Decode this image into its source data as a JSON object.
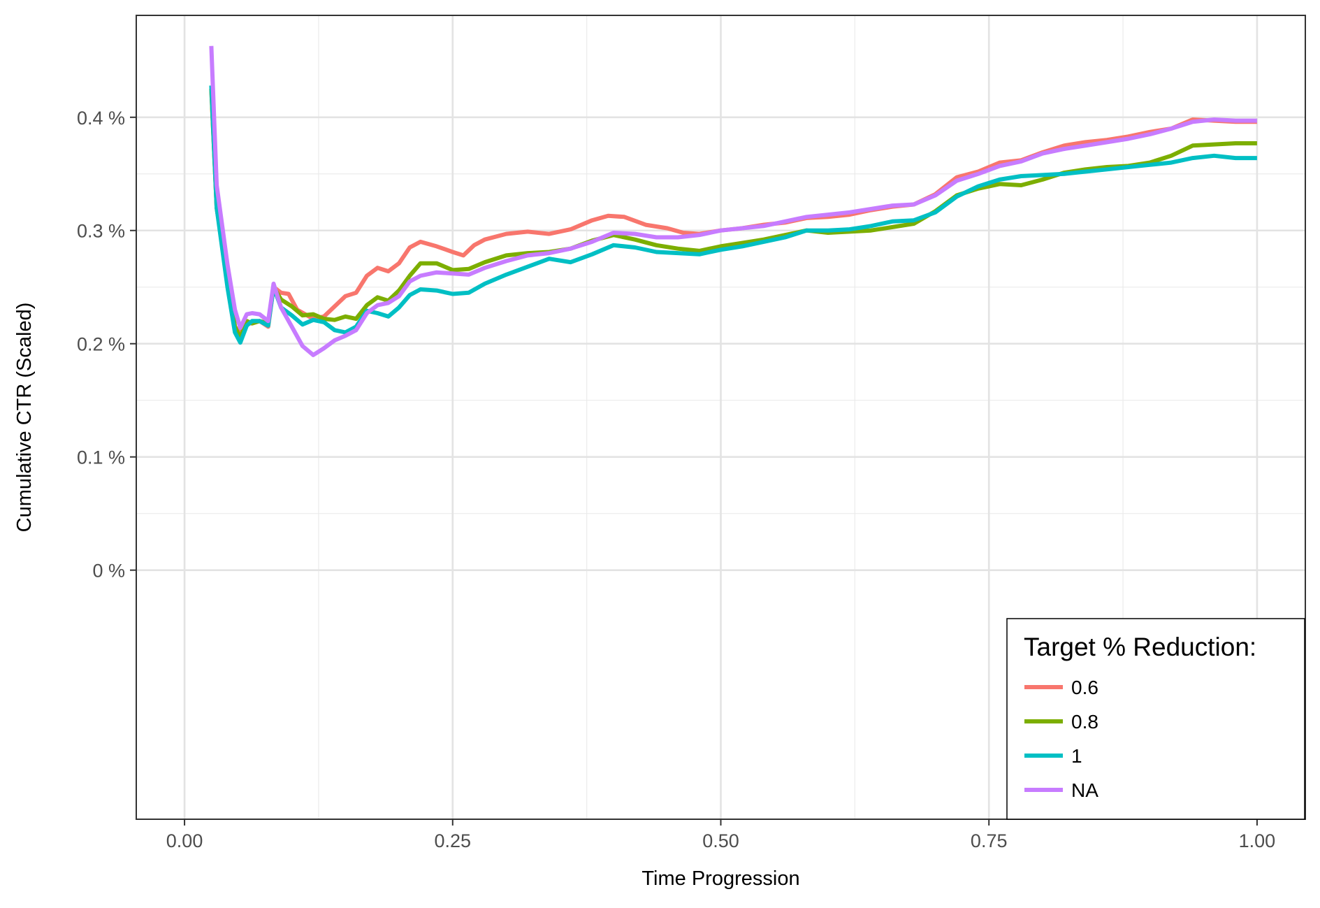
{
  "chart_data": {
    "type": "line",
    "title": "",
    "xlabel": "Time Progression",
    "ylabel": "Cumulative CTR (Scaled)",
    "xlim": [
      -0.045,
      1.045
    ],
    "ylim": [
      -0.0022,
      0.0049
    ],
    "x_ticks": [
      0.0,
      0.25,
      0.5,
      0.75,
      1.0
    ],
    "x_tick_labels": [
      "0.00",
      "0.25",
      "0.50",
      "0.75",
      "1.00"
    ],
    "y_ticks": [
      0.0,
      0.001,
      0.002,
      0.003,
      0.004
    ],
    "y_tick_labels": [
      "0 %",
      "0.1 %",
      "0.2 %",
      "0.3 %",
      "0.4 %"
    ],
    "grid": true,
    "legend": {
      "title": "Target % Reduction:",
      "position": "bottom-right"
    },
    "series": [
      {
        "name": "0.6",
        "color": "#F8766D",
        "points": [
          [
            0.025,
            0.00425
          ],
          [
            0.03,
            0.0032
          ],
          [
            0.04,
            0.0026
          ],
          [
            0.047,
            0.00215
          ],
          [
            0.052,
            0.0021
          ],
          [
            0.058,
            0.00218
          ],
          [
            0.063,
            0.00218
          ],
          [
            0.07,
            0.0022
          ],
          [
            0.078,
            0.00215
          ],
          [
            0.083,
            0.0025
          ],
          [
            0.09,
            0.00245
          ],
          [
            0.097,
            0.00244
          ],
          [
            0.105,
            0.0023
          ],
          [
            0.12,
            0.00222
          ],
          [
            0.13,
            0.00224
          ],
          [
            0.14,
            0.00233
          ],
          [
            0.15,
            0.00242
          ],
          [
            0.16,
            0.00245
          ],
          [
            0.17,
            0.0026
          ],
          [
            0.18,
            0.00267
          ],
          [
            0.19,
            0.00264
          ],
          [
            0.2,
            0.00271
          ],
          [
            0.21,
            0.00285
          ],
          [
            0.22,
            0.0029
          ],
          [
            0.235,
            0.00286
          ],
          [
            0.25,
            0.00281
          ],
          [
            0.26,
            0.00278
          ],
          [
            0.27,
            0.00287
          ],
          [
            0.28,
            0.00292
          ],
          [
            0.3,
            0.00297
          ],
          [
            0.32,
            0.00299
          ],
          [
            0.34,
            0.00297
          ],
          [
            0.36,
            0.00301
          ],
          [
            0.38,
            0.00309
          ],
          [
            0.395,
            0.00313
          ],
          [
            0.41,
            0.00312
          ],
          [
            0.43,
            0.00305
          ],
          [
            0.45,
            0.00302
          ],
          [
            0.465,
            0.00298
          ],
          [
            0.48,
            0.00297
          ],
          [
            0.5,
            0.003
          ],
          [
            0.52,
            0.00302
          ],
          [
            0.54,
            0.00305
          ],
          [
            0.56,
            0.00307
          ],
          [
            0.58,
            0.00311
          ],
          [
            0.6,
            0.00312
          ],
          [
            0.62,
            0.00314
          ],
          [
            0.64,
            0.00318
          ],
          [
            0.66,
            0.00321
          ],
          [
            0.68,
            0.00323
          ],
          [
            0.7,
            0.00332
          ],
          [
            0.72,
            0.00347
          ],
          [
            0.74,
            0.00352
          ],
          [
            0.76,
            0.0036
          ],
          [
            0.78,
            0.00362
          ],
          [
            0.8,
            0.00369
          ],
          [
            0.82,
            0.00375
          ],
          [
            0.84,
            0.00378
          ],
          [
            0.86,
            0.0038
          ],
          [
            0.88,
            0.00383
          ],
          [
            0.9,
            0.00387
          ],
          [
            0.92,
            0.0039
          ],
          [
            0.94,
            0.00398
          ],
          [
            0.96,
            0.00397
          ],
          [
            0.98,
            0.00396
          ],
          [
            1.0,
            0.00396
          ]
        ]
      },
      {
        "name": "0.8",
        "color": "#7CAE00",
        "points": [
          [
            0.025,
            0.00425
          ],
          [
            0.03,
            0.0032
          ],
          [
            0.04,
            0.0026
          ],
          [
            0.047,
            0.00215
          ],
          [
            0.052,
            0.00205
          ],
          [
            0.058,
            0.0022
          ],
          [
            0.063,
            0.00218
          ],
          [
            0.07,
            0.0022
          ],
          [
            0.078,
            0.00218
          ],
          [
            0.083,
            0.0025
          ],
          [
            0.09,
            0.00239
          ],
          [
            0.1,
            0.00233
          ],
          [
            0.11,
            0.00225
          ],
          [
            0.12,
            0.00226
          ],
          [
            0.13,
            0.00222
          ],
          [
            0.14,
            0.00221
          ],
          [
            0.15,
            0.00224
          ],
          [
            0.16,
            0.00222
          ],
          [
            0.17,
            0.00234
          ],
          [
            0.18,
            0.00241
          ],
          [
            0.19,
            0.00238
          ],
          [
            0.2,
            0.00247
          ],
          [
            0.21,
            0.0026
          ],
          [
            0.22,
            0.00271
          ],
          [
            0.235,
            0.00271
          ],
          [
            0.25,
            0.00265
          ],
          [
            0.265,
            0.00266
          ],
          [
            0.28,
            0.00272
          ],
          [
            0.3,
            0.00278
          ],
          [
            0.32,
            0.0028
          ],
          [
            0.34,
            0.00281
          ],
          [
            0.36,
            0.00284
          ],
          [
            0.38,
            0.00291
          ],
          [
            0.4,
            0.00296
          ],
          [
            0.42,
            0.00292
          ],
          [
            0.44,
            0.00287
          ],
          [
            0.46,
            0.00284
          ],
          [
            0.48,
            0.00282
          ],
          [
            0.5,
            0.00286
          ],
          [
            0.52,
            0.00289
          ],
          [
            0.54,
            0.00292
          ],
          [
            0.56,
            0.00296
          ],
          [
            0.58,
            0.003
          ],
          [
            0.6,
            0.00298
          ],
          [
            0.62,
            0.00299
          ],
          [
            0.64,
            0.003
          ],
          [
            0.66,
            0.00303
          ],
          [
            0.68,
            0.00306
          ],
          [
            0.7,
            0.00317
          ],
          [
            0.72,
            0.00331
          ],
          [
            0.74,
            0.00337
          ],
          [
            0.76,
            0.00341
          ],
          [
            0.78,
            0.0034
          ],
          [
            0.8,
            0.00345
          ],
          [
            0.82,
            0.00351
          ],
          [
            0.84,
            0.00354
          ],
          [
            0.86,
            0.00356
          ],
          [
            0.88,
            0.00357
          ],
          [
            0.9,
            0.0036
          ],
          [
            0.92,
            0.00366
          ],
          [
            0.94,
            0.00375
          ],
          [
            0.96,
            0.00376
          ],
          [
            0.98,
            0.00377
          ],
          [
            1.0,
            0.00377
          ]
        ]
      },
      {
        "name": "1",
        "color": "#00BFC4",
        "points": [
          [
            0.025,
            0.00428
          ],
          [
            0.03,
            0.0032
          ],
          [
            0.04,
            0.0025
          ],
          [
            0.047,
            0.0021
          ],
          [
            0.052,
            0.00201
          ],
          [
            0.058,
            0.00216
          ],
          [
            0.063,
            0.0022
          ],
          [
            0.07,
            0.0022
          ],
          [
            0.078,
            0.00216
          ],
          [
            0.083,
            0.0025
          ],
          [
            0.09,
            0.00232
          ],
          [
            0.1,
            0.00225
          ],
          [
            0.11,
            0.00217
          ],
          [
            0.12,
            0.00221
          ],
          [
            0.13,
            0.00219
          ],
          [
            0.14,
            0.00212
          ],
          [
            0.15,
            0.0021
          ],
          [
            0.16,
            0.00215
          ],
          [
            0.17,
            0.00229
          ],
          [
            0.18,
            0.00227
          ],
          [
            0.19,
            0.00224
          ],
          [
            0.2,
            0.00232
          ],
          [
            0.21,
            0.00243
          ],
          [
            0.22,
            0.00248
          ],
          [
            0.235,
            0.00247
          ],
          [
            0.25,
            0.00244
          ],
          [
            0.265,
            0.00245
          ],
          [
            0.28,
            0.00253
          ],
          [
            0.3,
            0.00261
          ],
          [
            0.32,
            0.00268
          ],
          [
            0.34,
            0.00275
          ],
          [
            0.36,
            0.00272
          ],
          [
            0.38,
            0.00279
          ],
          [
            0.4,
            0.00287
          ],
          [
            0.42,
            0.00285
          ],
          [
            0.44,
            0.00281
          ],
          [
            0.46,
            0.0028
          ],
          [
            0.48,
            0.00279
          ],
          [
            0.5,
            0.00283
          ],
          [
            0.52,
            0.00286
          ],
          [
            0.54,
            0.0029
          ],
          [
            0.56,
            0.00294
          ],
          [
            0.58,
            0.003
          ],
          [
            0.6,
            0.003
          ],
          [
            0.62,
            0.00301
          ],
          [
            0.64,
            0.00304
          ],
          [
            0.66,
            0.00308
          ],
          [
            0.68,
            0.00309
          ],
          [
            0.7,
            0.00316
          ],
          [
            0.72,
            0.0033
          ],
          [
            0.74,
            0.00339
          ],
          [
            0.76,
            0.00345
          ],
          [
            0.78,
            0.00348
          ],
          [
            0.8,
            0.00349
          ],
          [
            0.82,
            0.0035
          ],
          [
            0.84,
            0.00352
          ],
          [
            0.86,
            0.00354
          ],
          [
            0.88,
            0.00356
          ],
          [
            0.9,
            0.00358
          ],
          [
            0.92,
            0.0036
          ],
          [
            0.94,
            0.00364
          ],
          [
            0.96,
            0.00366
          ],
          [
            0.98,
            0.00364
          ],
          [
            1.0,
            0.00364
          ]
        ]
      },
      {
        "name": "NA",
        "color": "#C77CFF",
        "points": [
          [
            0.025,
            0.00463
          ],
          [
            0.03,
            0.0034
          ],
          [
            0.04,
            0.0027
          ],
          [
            0.047,
            0.0023
          ],
          [
            0.052,
            0.00214
          ],
          [
            0.058,
            0.00226
          ],
          [
            0.063,
            0.00227
          ],
          [
            0.07,
            0.00226
          ],
          [
            0.078,
            0.0022
          ],
          [
            0.083,
            0.00253
          ],
          [
            0.09,
            0.00232
          ],
          [
            0.1,
            0.00215
          ],
          [
            0.11,
            0.00198
          ],
          [
            0.12,
            0.0019
          ],
          [
            0.13,
            0.00196
          ],
          [
            0.14,
            0.00203
          ],
          [
            0.15,
            0.00207
          ],
          [
            0.16,
            0.00212
          ],
          [
            0.17,
            0.00227
          ],
          [
            0.18,
            0.00234
          ],
          [
            0.19,
            0.00236
          ],
          [
            0.2,
            0.00242
          ],
          [
            0.21,
            0.00255
          ],
          [
            0.22,
            0.0026
          ],
          [
            0.235,
            0.00263
          ],
          [
            0.25,
            0.00262
          ],
          [
            0.265,
            0.00261
          ],
          [
            0.28,
            0.00267
          ],
          [
            0.3,
            0.00273
          ],
          [
            0.32,
            0.00278
          ],
          [
            0.34,
            0.0028
          ],
          [
            0.36,
            0.00284
          ],
          [
            0.38,
            0.0029
          ],
          [
            0.4,
            0.00298
          ],
          [
            0.42,
            0.00297
          ],
          [
            0.44,
            0.00294
          ],
          [
            0.46,
            0.00294
          ],
          [
            0.48,
            0.00296
          ],
          [
            0.5,
            0.003
          ],
          [
            0.52,
            0.00302
          ],
          [
            0.54,
            0.00304
          ],
          [
            0.56,
            0.00308
          ],
          [
            0.58,
            0.00312
          ],
          [
            0.6,
            0.00314
          ],
          [
            0.62,
            0.00316
          ],
          [
            0.64,
            0.00319
          ],
          [
            0.66,
            0.00322
          ],
          [
            0.68,
            0.00323
          ],
          [
            0.7,
            0.00331
          ],
          [
            0.72,
            0.00344
          ],
          [
            0.74,
            0.0035
          ],
          [
            0.76,
            0.00357
          ],
          [
            0.78,
            0.00361
          ],
          [
            0.8,
            0.00368
          ],
          [
            0.82,
            0.00372
          ],
          [
            0.84,
            0.00375
          ],
          [
            0.86,
            0.00378
          ],
          [
            0.88,
            0.00381
          ],
          [
            0.9,
            0.00385
          ],
          [
            0.92,
            0.0039
          ],
          [
            0.94,
            0.00396
          ],
          [
            0.96,
            0.00398
          ],
          [
            0.98,
            0.00397
          ],
          [
            1.0,
            0.00397
          ]
        ]
      }
    ]
  }
}
